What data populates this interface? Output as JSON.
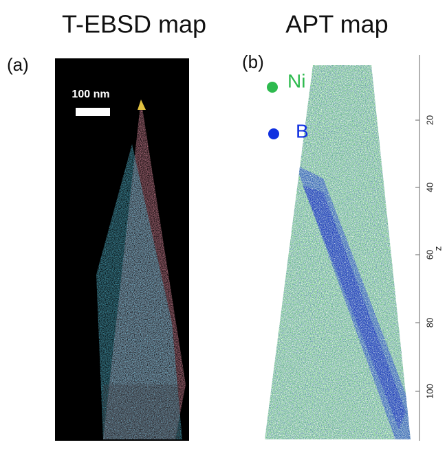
{
  "panels": [
    {
      "title": "T-EBSD map",
      "label": "(a)",
      "scale_bar": "100 nm"
    },
    {
      "title": "APT map",
      "label": "(b)",
      "legend": [
        "Ni",
        "B"
      ],
      "axis_label": "z",
      "ticks": [
        "20",
        "40",
        "60",
        "80",
        "100"
      ]
    }
  ]
}
